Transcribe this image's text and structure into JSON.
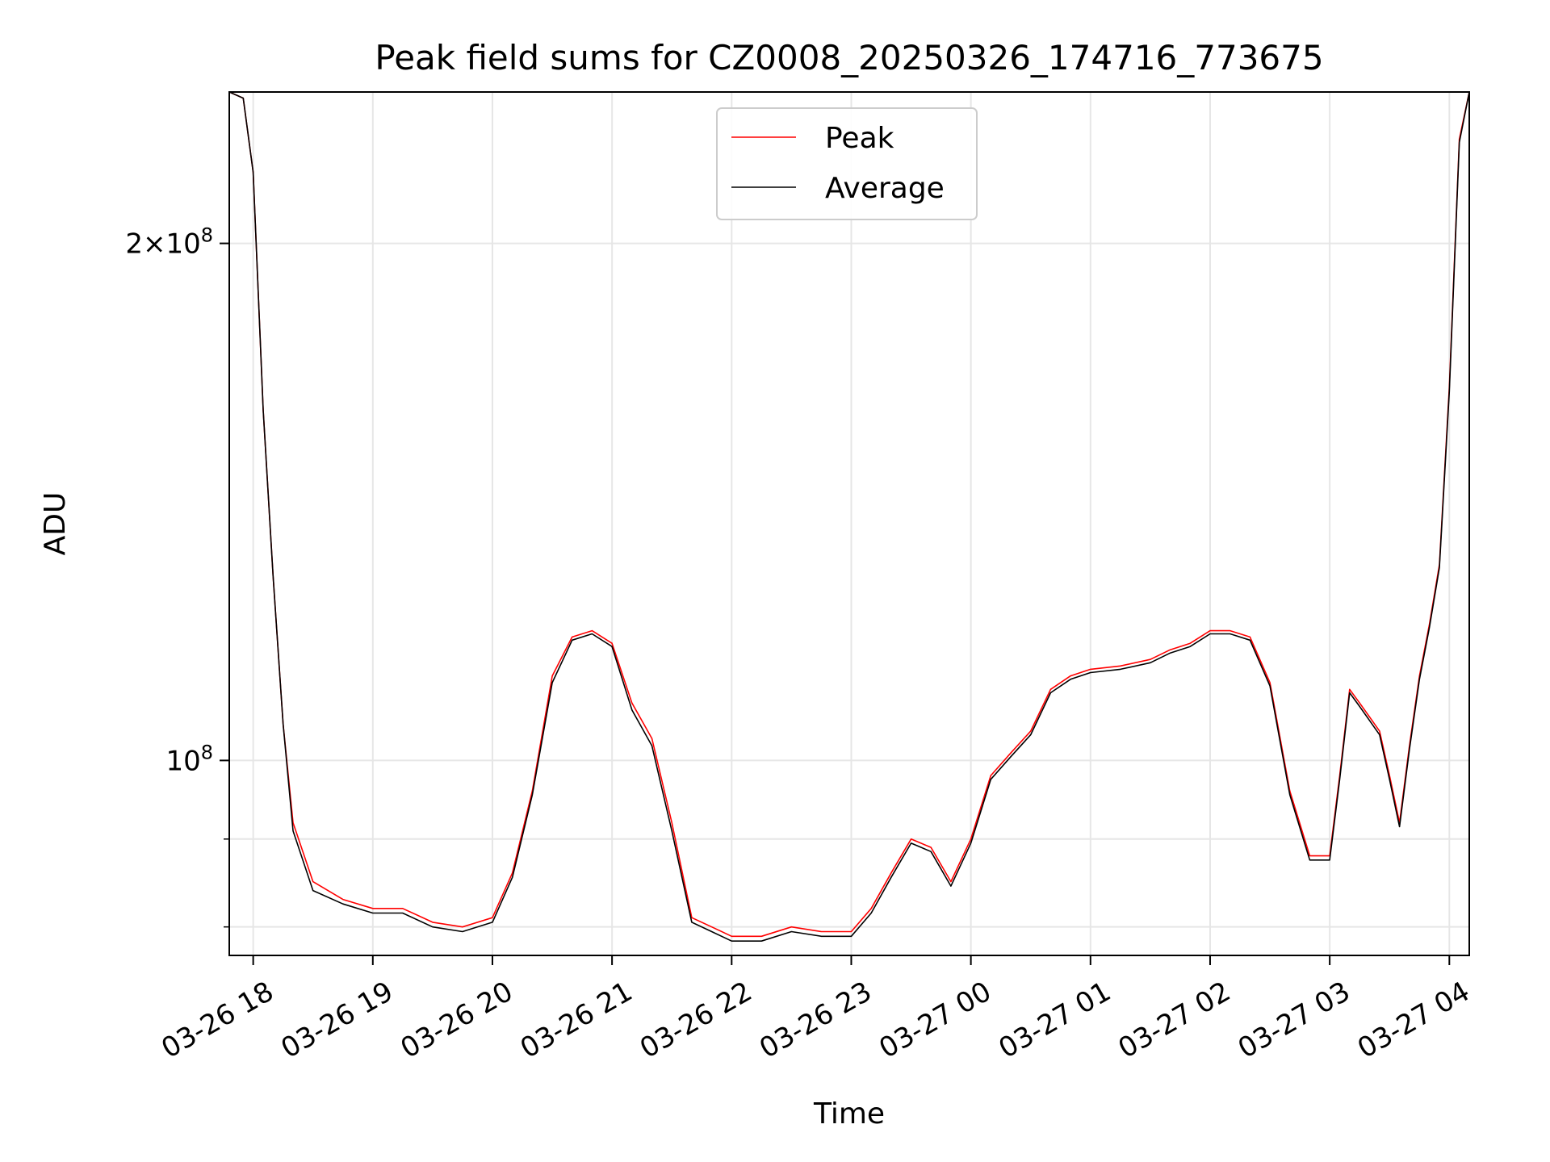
{
  "chart_data": {
    "type": "line",
    "title": "Peak field sums for CZ0008_20250326_174716_773675",
    "xlabel": "Time",
    "ylabel": "ADU",
    "yscale": "log",
    "grid": true,
    "legend_position": "top-center",
    "xlim": [
      "03-26 17:48",
      "03-27 04:10"
    ],
    "ylim": [
      77000000,
      245000000
    ],
    "x_ticks": [
      "03-26 18",
      "03-26 19",
      "03-26 20",
      "03-26 21",
      "03-26 22",
      "03-26 23",
      "03-27 00",
      "03-27 01",
      "03-27 02",
      "03-27 03",
      "03-27 04"
    ],
    "y_ticks": [
      {
        "value": 200000000,
        "mantissa": "2",
        "exponent": "8"
      },
      {
        "value": 100000000,
        "mantissa": "",
        "exponent": "8"
      }
    ],
    "y_minor_ticks": [
      80000000,
      90000000
    ],
    "x": [
      "03-26 17:48",
      "03-26 17:55",
      "03-26 18:00",
      "03-26 18:05",
      "03-26 18:10",
      "03-26 18:15",
      "03-26 18:20",
      "03-26 18:30",
      "03-26 18:45",
      "03-26 19:00",
      "03-26 19:15",
      "03-26 19:30",
      "03-26 19:45",
      "03-26 20:00",
      "03-26 20:10",
      "03-26 20:20",
      "03-26 20:30",
      "03-26 20:40",
      "03-26 20:50",
      "03-26 21:00",
      "03-26 21:10",
      "03-26 21:20",
      "03-26 21:30",
      "03-26 21:40",
      "03-26 21:50",
      "03-26 22:00",
      "03-26 22:15",
      "03-26 22:30",
      "03-26 22:45",
      "03-26 23:00",
      "03-26 23:10",
      "03-26 23:20",
      "03-26 23:30",
      "03-26 23:40",
      "03-26 23:50",
      "03-27 00:00",
      "03-27 00:10",
      "03-27 00:20",
      "03-27 00:30",
      "03-27 00:40",
      "03-27 00:50",
      "03-27 01:00",
      "03-27 01:15",
      "03-27 01:30",
      "03-27 01:40",
      "03-27 01:50",
      "03-27 02:00",
      "03-27 02:10",
      "03-27 02:20",
      "03-27 02:30",
      "03-27 02:40",
      "03-27 02:50",
      "03-27 03:00",
      "03-27 03:05",
      "03-27 03:10",
      "03-27 03:15",
      "03-27 03:20",
      "03-27 03:25",
      "03-27 03:30",
      "03-27 03:35",
      "03-27 03:40",
      "03-27 03:45",
      "03-27 03:50",
      "03-27 03:55",
      "03-27 04:00",
      "03-27 04:05",
      "03-27 04:10"
    ],
    "series": [
      {
        "name": "Peak",
        "color": "#ff0000",
        "values": [
          245000000,
          243000000,
          220000000,
          160000000,
          128000000,
          105000000,
          92000000,
          85000000,
          83000000,
          82000000,
          82000000,
          80500000,
          80000000,
          81000000,
          86000000,
          96000000,
          112000000,
          118000000,
          119000000,
          117000000,
          108000000,
          103000000,
          92000000,
          81000000,
          80000000,
          79000000,
          79000000,
          80000000,
          79500000,
          79500000,
          82000000,
          86000000,
          90000000,
          89000000,
          85000000,
          90000000,
          98000000,
          101000000,
          104000000,
          110000000,
          112000000,
          113000000,
          113500000,
          114500000,
          116000000,
          117000000,
          119000000,
          119000000,
          118000000,
          111000000,
          96000000,
          88000000,
          88000000,
          98000000,
          110000000,
          108000000,
          106000000,
          104000000,
          98000000,
          92000000,
          102000000,
          112000000,
          120000000,
          130000000,
          165000000,
          230000000,
          245000000
        ]
      },
      {
        "name": "Average",
        "color": "#000000",
        "values": [
          245000000,
          243000000,
          220000000,
          160000000,
          128000000,
          105000000,
          91000000,
          84000000,
          82500000,
          81500000,
          81500000,
          80000000,
          79500000,
          80500000,
          85500000,
          95500000,
          111000000,
          117500000,
          118500000,
          116500000,
          107000000,
          102000000,
          91000000,
          80500000,
          79500000,
          78500000,
          78500000,
          79500000,
          79000000,
          79000000,
          81500000,
          85500000,
          89500000,
          88500000,
          84500000,
          89500000,
          97500000,
          100500000,
          103500000,
          109500000,
          111500000,
          112500000,
          113000000,
          114000000,
          115500000,
          116500000,
          118500000,
          118500000,
          117500000,
          110500000,
          95500000,
          87500000,
          87500000,
          97500000,
          109500000,
          107500000,
          105500000,
          103500000,
          97500000,
          91500000,
          101500000,
          111500000,
          119500000,
          129500000,
          164000000,
          229000000,
          245000000
        ]
      }
    ]
  }
}
